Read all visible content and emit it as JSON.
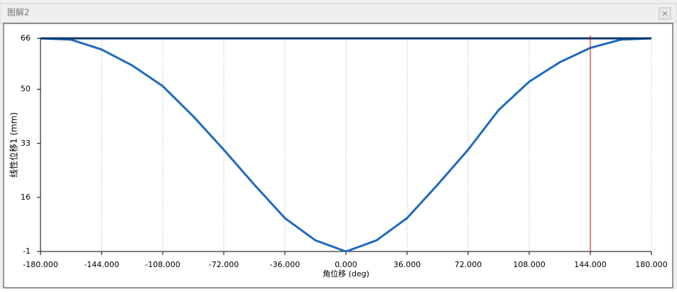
{
  "window": {
    "title": "图解2"
  },
  "chart_data": {
    "type": "line",
    "xlabel": "角位移 (deg)",
    "ylabel": "线性位移1 (mm)",
    "xlim": [
      -180,
      180
    ],
    "ylim": [
      -1,
      66
    ],
    "xticks": [
      {
        "value": -180,
        "label": "-180.000"
      },
      {
        "value": -144,
        "label": "-144.000"
      },
      {
        "value": -108,
        "label": "-108.000"
      },
      {
        "value": -72,
        "label": "-72.000"
      },
      {
        "value": -36,
        "label": "-36.000"
      },
      {
        "value": 0,
        "label": "0.000"
      },
      {
        "value": 36,
        "label": "36.000"
      },
      {
        "value": 72,
        "label": "72.000"
      },
      {
        "value": 108,
        "label": "108.000"
      },
      {
        "value": 144,
        "label": "144.000"
      },
      {
        "value": 180,
        "label": "180.000"
      }
    ],
    "yticks": [
      -1,
      16,
      33,
      50,
      66
    ],
    "grid": true,
    "cursor_x": 144,
    "cursor_color": "#cc0000",
    "series": [
      {
        "color": "#1f6bbf",
        "x": [
          -180,
          -162,
          -144,
          -126,
          -108,
          -90,
          -72,
          -54,
          -36,
          -18,
          0,
          18,
          36,
          54,
          72,
          90,
          108,
          126,
          144,
          162,
          180
        ],
        "values": [
          66,
          65.6,
          62.5,
          57.5,
          51,
          41.5,
          31,
          20,
          9.5,
          2.5,
          -1,
          2.5,
          9.5,
          20,
          31,
          43.5,
          52.4,
          58.5,
          63,
          65.6,
          66
        ]
      },
      {
        "color": "#0d3a6e",
        "x": [
          -180,
          180
        ],
        "values": [
          66,
          66
        ]
      }
    ]
  }
}
